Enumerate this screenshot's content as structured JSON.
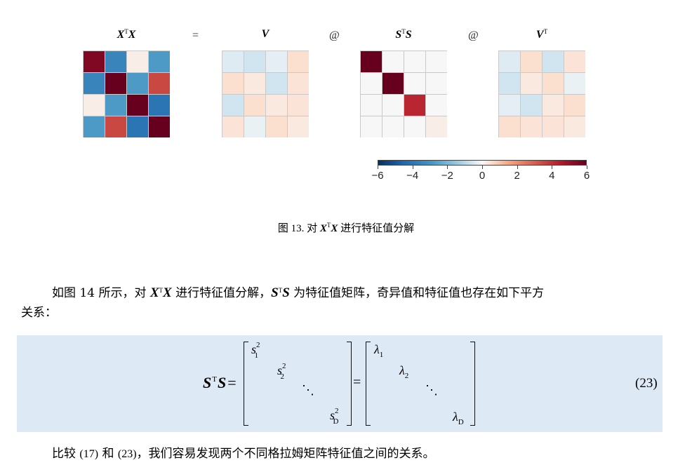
{
  "figure": {
    "titles": {
      "xtx": {
        "base": "X",
        "sup": "T",
        "base2": "X"
      },
      "v": {
        "base": "V"
      },
      "sts": {
        "base": "S",
        "sup": "T",
        "base2": "S"
      },
      "vt": {
        "base": "V",
        "sup": "T"
      }
    },
    "operators": {
      "eq": "=",
      "at1": "@",
      "at2": "@"
    },
    "matrices": {
      "xtx": [
        [
          5.5,
          -3.5,
          0.2,
          -2.8
        ],
        [
          -3.5,
          6.0,
          -2.8,
          3.5
        ],
        [
          0.2,
          -2.8,
          6.0,
          -4.0
        ],
        [
          -2.8,
          3.5,
          -4.0,
          6.0
        ]
      ],
      "v": [
        [
          -0.4,
          -0.6,
          -0.3,
          0.5
        ],
        [
          0.5,
          0.3,
          -0.6,
          0.4
        ],
        [
          -0.6,
          0.5,
          0.3,
          0.4
        ],
        [
          0.4,
          -0.2,
          0.5,
          0.3
        ]
      ],
      "sts": [
        [
          6.0,
          0,
          0,
          0
        ],
        [
          0,
          6.0,
          0,
          0
        ],
        [
          0,
          0,
          4.2,
          0
        ],
        [
          0,
          0,
          0,
          0.2
        ]
      ],
      "vt": [
        [
          -0.4,
          0.5,
          -0.6,
          0.4
        ],
        [
          -0.6,
          0.3,
          0.5,
          -0.2
        ],
        [
          -0.3,
          -0.6,
          0.3,
          0.5
        ],
        [
          0.5,
          0.4,
          0.4,
          0.3
        ]
      ]
    },
    "colorbar": {
      "min": -6,
      "max": 6,
      "ticks": [
        "−6",
        "−4",
        "−2",
        "0",
        "2",
        "4",
        "6"
      ],
      "colormap": "RdBu_r"
    },
    "caption": {
      "prefix": "图 13. 对 ",
      "b1": "X",
      "sup": "T",
      "b2": "X",
      "suffix": " 进行特征值分解"
    }
  },
  "paragraph1": {
    "a": "如图 14 所示，对 ",
    "b1": "X",
    "sup1": "T",
    "b2": "X",
    "c": " 进行特征值分解，",
    "d1": "S",
    "sup2": "T",
    "d2": "S",
    "e": " 为特征值矩阵，奇异值和特征值也存在如下平方",
    "f": "关系："
  },
  "equation": {
    "lhs_base": "S",
    "lhs_sup": "T",
    "lhs_base2": "S",
    "eq1": "=",
    "eq2": "=",
    "left_entries": [
      {
        "base": "s",
        "sub": "1",
        "sup": "2"
      },
      {
        "base": "s",
        "sub": "2",
        "sup": "2"
      },
      {
        "base": "s",
        "sub": "D",
        "sup": "2"
      }
    ],
    "right_entries": [
      {
        "base": "λ",
        "sub": "1"
      },
      {
        "base": "λ",
        "sub": "2"
      },
      {
        "base": "λ",
        "sub": "D"
      }
    ],
    "ddots": "⋱",
    "number": "(23)"
  },
  "paragraph2": {
    "a": "比较 ",
    "r1": "(17)",
    "b": " 和 ",
    "r2": "(23)",
    "c": "，我们容易发现两个不同格拉姆矩阵特征值之间的关系。"
  }
}
